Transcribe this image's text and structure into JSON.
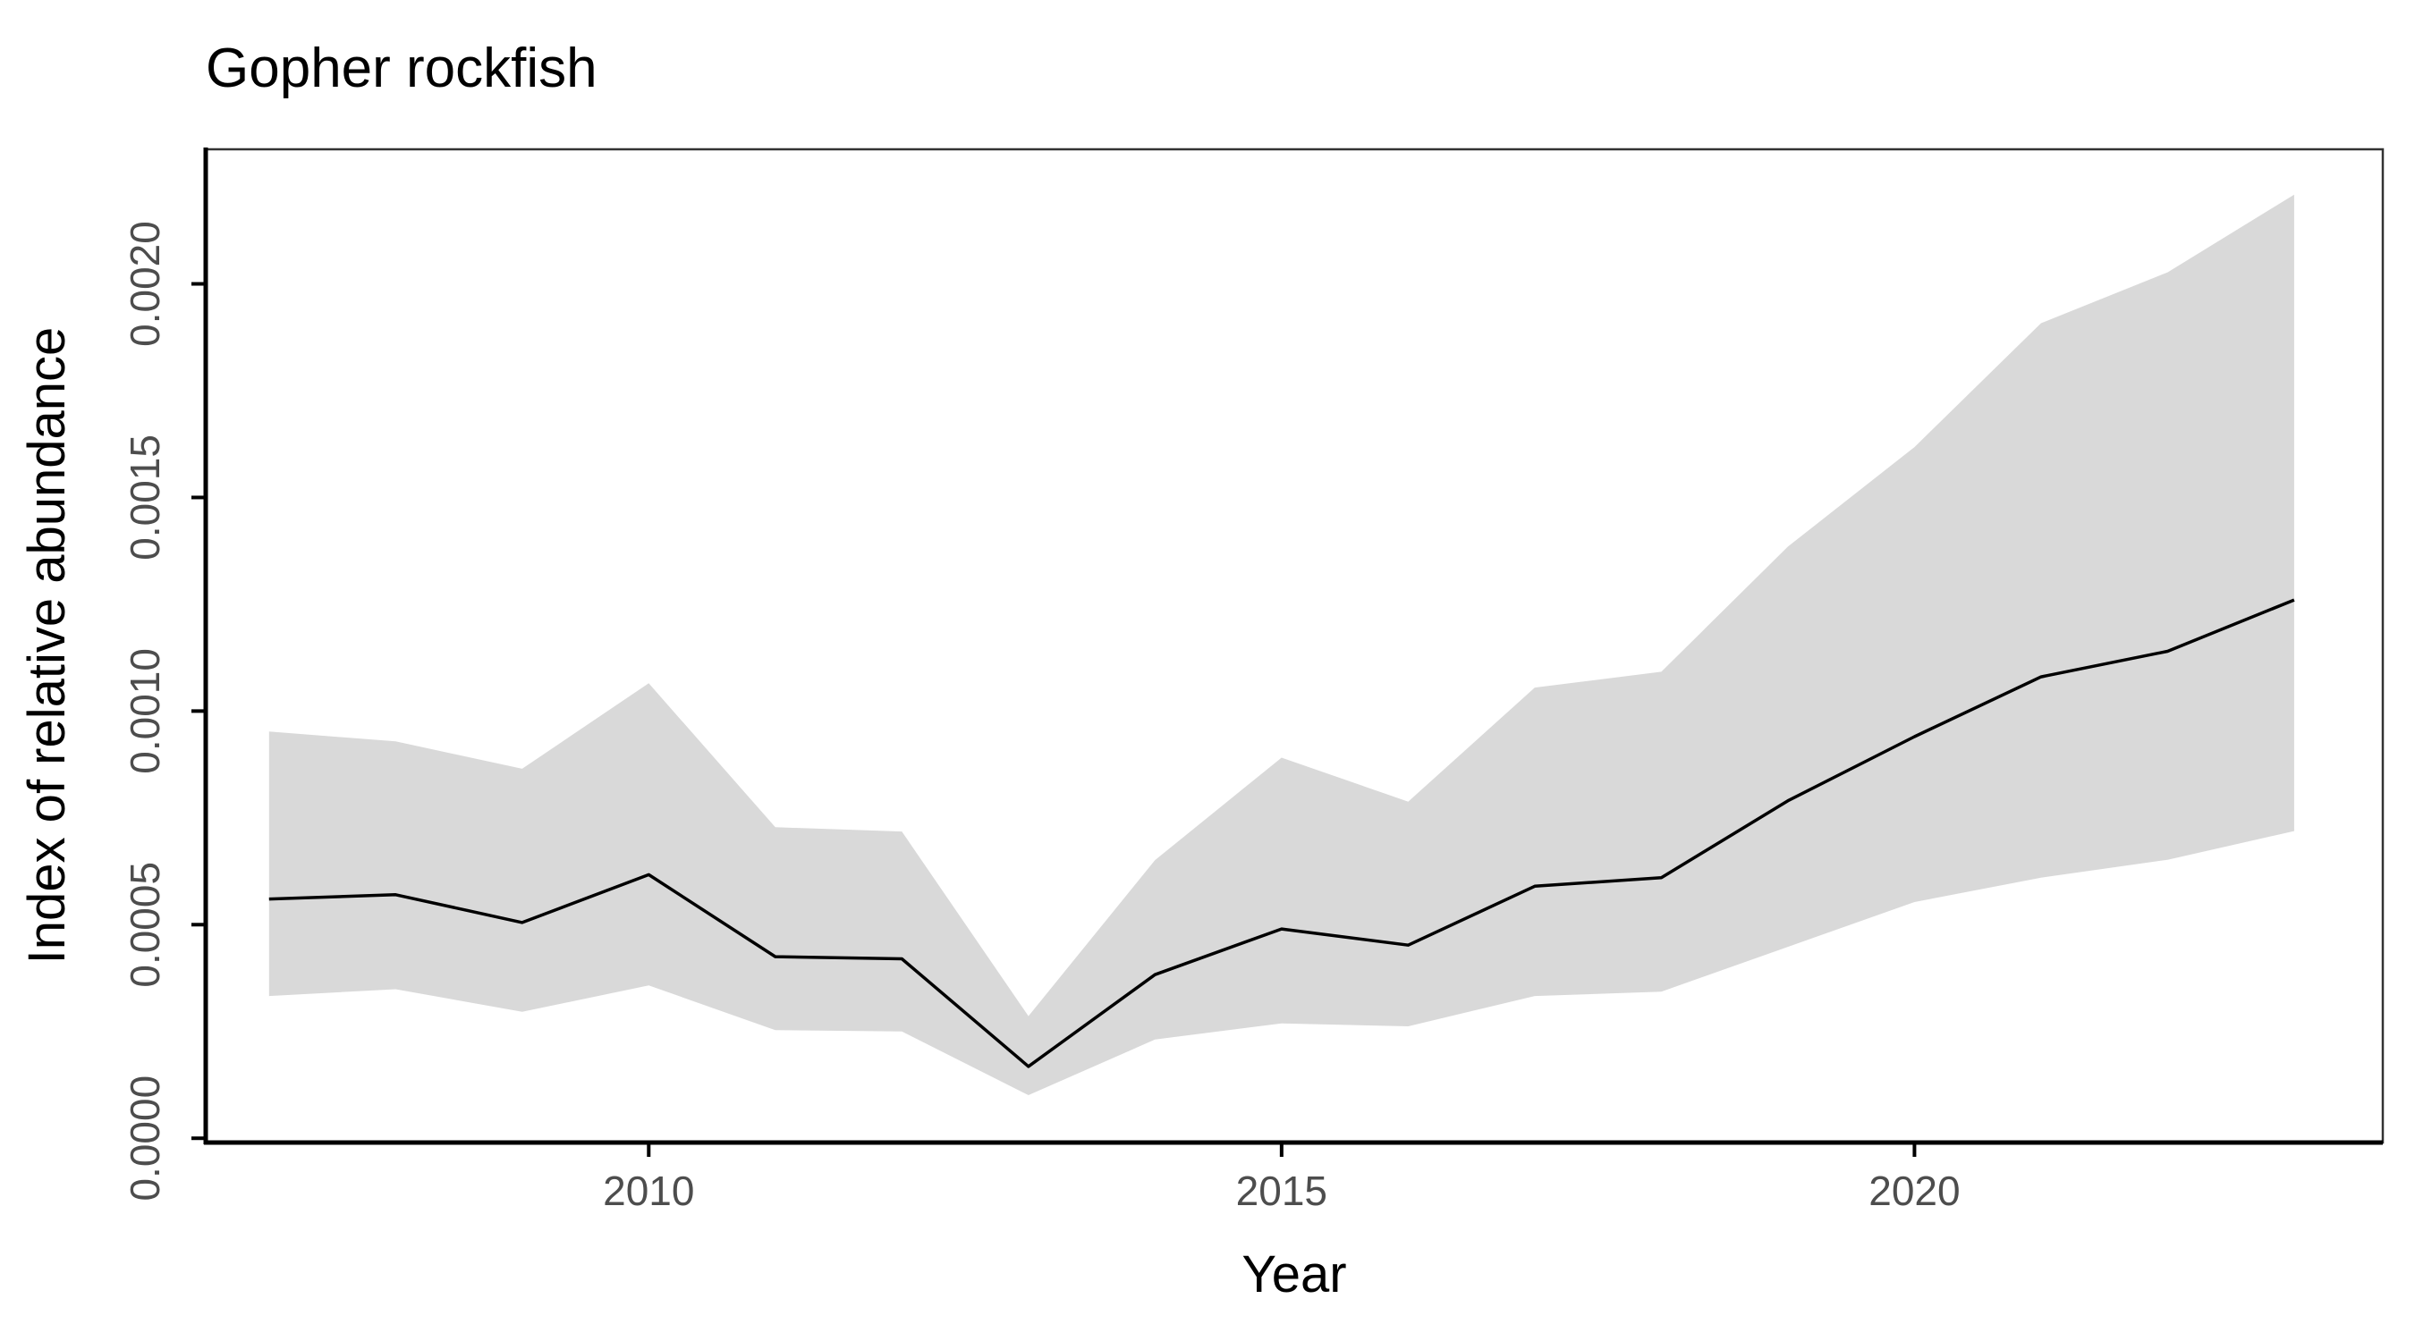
{
  "chart_data": {
    "type": "line",
    "title": "Gopher rockfish",
    "xlabel": "Year",
    "ylabel": "Index of relative abundance",
    "xlim": [
      2006.5,
      2023.7
    ],
    "ylim": [
      -1e-05,
      0.002315
    ],
    "x_ticks": [
      2010,
      2015,
      2020
    ],
    "x_tick_labels": [
      "2010",
      "2015",
      "2020"
    ],
    "y_ticks": [
      0,
      0.0005,
      0.001,
      0.0015,
      0.002
    ],
    "y_tick_labels": [
      "0.0000",
      "0.0005",
      "0.0010",
      "0.0015",
      "0.0020"
    ],
    "grid": false,
    "legend": "none",
    "colors": {
      "line": "#000000",
      "ribbon": "#d9d9d9",
      "axis": "#000000",
      "tick_label": "#4d4d4d"
    },
    "x": [
      2007,
      2008,
      2009,
      2010,
      2011,
      2012,
      2013,
      2014,
      2015,
      2016,
      2017,
      2018,
      2019,
      2020,
      2021,
      2022,
      2023
    ],
    "series": [
      {
        "values": [
          0.00056,
          0.00057,
          0.000505,
          0.000617,
          0.000425,
          0.00042,
          0.000168,
          0.000383,
          0.00049,
          0.000452,
          0.00059,
          0.00061,
          0.00079,
          0.00094,
          0.00108,
          0.00114,
          0.00126
        ],
        "lower": [
          0.000333,
          0.000349,
          0.000296,
          0.000358,
          0.000253,
          0.00025,
          0.000101,
          0.000231,
          0.000269,
          0.000262,
          0.000333,
          0.000343,
          0.000448,
          0.000553,
          0.00061,
          0.000652,
          0.000719
        ],
        "upper": [
          0.000952,
          0.000929,
          0.000865,
          0.001065,
          0.000728,
          0.000718,
          0.000286,
          0.000651,
          0.000891,
          0.000788,
          0.001055,
          0.001092,
          0.001385,
          0.001618,
          0.001908,
          0.002027,
          0.002209
        ]
      }
    ]
  }
}
